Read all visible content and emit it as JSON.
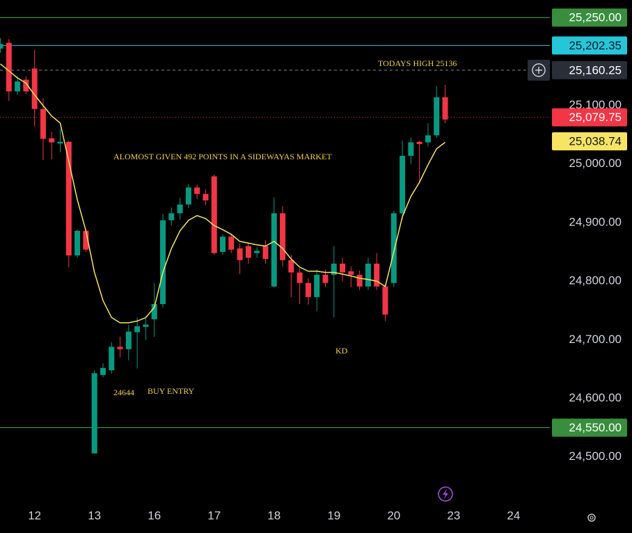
{
  "chart_data": {
    "type": "candlestick",
    "xlim": [
      0,
      64
    ],
    "ylim": [
      24470,
      25280
    ],
    "xticks": [
      {
        "value": 4,
        "label": "12"
      },
      {
        "value": 11,
        "label": "13"
      },
      {
        "value": 18,
        "label": "16"
      },
      {
        "value": 25,
        "label": "17"
      },
      {
        "value": 32,
        "label": "18"
      },
      {
        "value": 39,
        "label": "19"
      },
      {
        "value": 46,
        "label": "20"
      },
      {
        "value": 53,
        "label": "23"
      },
      {
        "value": 60,
        "label": "24"
      }
    ],
    "yticks": [
      {
        "value": 24500,
        "label": "24,500.00"
      },
      {
        "value": 24600,
        "label": "24,600.00"
      },
      {
        "value": 24700,
        "label": "24,700.00"
      },
      {
        "value": 24800,
        "label": "24,800.00"
      },
      {
        "value": 24900,
        "label": "24,900.00"
      },
      {
        "value": 25000,
        "label": "25,000.00"
      },
      {
        "value": 25100,
        "label": "25,100.00"
      }
    ],
    "up_color": "#089981",
    "down_color": "#f23645",
    "open": [
      25197,
      25207,
      25124,
      25144,
      25163,
      25094,
      25044,
      25035,
      25038,
      24844,
      24886,
      24506,
      24640,
      24648,
      24688,
      24684,
      24713,
      24722,
      24735,
      24761,
      24904,
      24916,
      24931,
      24960,
      24949,
      24979,
      24850,
      24876,
      24856,
      24860,
      24848,
      24860,
      24791,
      24916,
      24836,
      24815,
      24797,
      24773,
      24811,
      24811,
      24830,
      24817,
      24811,
      24791,
      24830,
      24791,
      24797,
      24916,
      25014,
      25038,
      25037,
      25049,
      25114
    ],
    "high": [
      25215,
      25213,
      25150,
      25150,
      25195,
      25112,
      25055,
      25060,
      25040,
      24888,
      24888,
      24648,
      24660,
      24696,
      24705,
      24725,
      24738,
      24740,
      24797,
      24915,
      24926,
      24942,
      24966,
      24965,
      24957,
      24982,
      24880,
      24880,
      24865,
      24865,
      24858,
      24870,
      24943,
      24928,
      24845,
      24822,
      24805,
      24820,
      24820,
      24860,
      24840,
      24825,
      24818,
      24840,
      24848,
      24795,
      24920,
      25040,
      25045,
      25040,
      25070,
      25133,
      25135
    ],
    "low": [
      25190,
      25108,
      25118,
      25120,
      25064,
      25007,
      25008,
      25020,
      24824,
      24840,
      24850,
      24506,
      24636,
      24642,
      24670,
      24665,
      24651,
      24700,
      24705,
      24755,
      24895,
      24905,
      24925,
      24940,
      24930,
      24845,
      24845,
      24848,
      24812,
      24830,
      24840,
      24830,
      24790,
      24825,
      24773,
      24761,
      24760,
      24749,
      24790,
      24738,
      24800,
      24790,
      24785,
      24785,
      24785,
      24732,
      24790,
      24905,
      25000,
      24967,
      25030,
      25045,
      25070
    ],
    "close": [
      25205,
      25124,
      25141,
      25124,
      25094,
      25043,
      25037,
      25038,
      24844,
      24886,
      24854,
      24643,
      24652,
      24688,
      24684,
      24714,
      24723,
      24726,
      24761,
      24904,
      24916,
      24931,
      24960,
      24949,
      24938,
      24848,
      24876,
      24854,
      24836,
      24840,
      24852,
      24838,
      24916,
      24836,
      24815,
      24797,
      24773,
      24811,
      24797,
      24830,
      24815,
      24811,
      24791,
      24830,
      24791,
      24743,
      24916,
      25014,
      25037,
      25034,
      25049,
      25114,
      25076
    ],
    "ma": {
      "color": "#f7e463",
      "values": [
        25171,
        25159,
        25147,
        25138,
        25118,
        25100,
        25082,
        25070,
        25005,
        24939,
        24886,
        24815,
        24767,
        24738,
        24729,
        24729,
        24732,
        24738,
        24755,
        24815,
        24856,
        24886,
        24904,
        24912,
        24907,
        24895,
        24888,
        24880,
        24868,
        24865,
        24862,
        24860,
        24868,
        24856,
        24838,
        24824,
        24817,
        24817,
        24815,
        24815,
        24812,
        24809,
        24805,
        24803,
        24800,
        24791,
        24850,
        24910,
        24945,
        24969,
        24999,
        25026,
        25037
      ]
    },
    "levels": [
      {
        "value": 25250,
        "label": "25,250.00",
        "color": "#4caf50",
        "box": "#388e3c",
        "text_color": "#ffffff",
        "style": "solid"
      },
      {
        "value": 25202.35,
        "label": "25,202.35",
        "color": "#26c6da",
        "box": "#26c6da",
        "text_color": "#131722",
        "style": "solid"
      },
      {
        "value": 25160.25,
        "label": "25,160.25",
        "color": "#8a8a8a",
        "box": "#2a2e39",
        "text_color": "#ffffff",
        "style": "dashed"
      },
      {
        "value": 25079.75,
        "label": "25,079.75",
        "color": "#f23645",
        "box": "#f23645",
        "text_color": "#ffffff",
        "style": "dotted"
      },
      {
        "value": 25038.74,
        "label": "25,038.74",
        "color": "#f7e463",
        "box": "#f7e463",
        "text_color": "#131722",
        "style": "none"
      },
      {
        "value": 24550,
        "label": "24,550.00",
        "color": "#4caf50",
        "box": "#388e3c",
        "text_color": "#ffffff",
        "style": "solid"
      }
    ],
    "annotations": [
      "TODAYS HIGH 25136",
      "ALOMOST GIVEN 492 POINTS IN A SIDEWAYAS MARKET",
      "24644",
      "BUY ENTRY",
      "KD"
    ]
  }
}
